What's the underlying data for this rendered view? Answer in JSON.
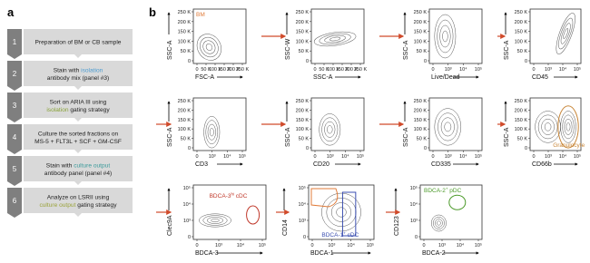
{
  "panel_a": {
    "label": "a",
    "steps": [
      {
        "number": "1",
        "lines": [
          [
            {
              "text": "Preparation of BM or CB sample"
            }
          ]
        ]
      },
      {
        "number": "2",
        "lines": [
          [
            {
              "text": "Stain with "
            },
            {
              "text": "isolation",
              "color": "#4a9bd1"
            }
          ],
          [
            {
              "text": "antibody mix (panel #3)"
            }
          ]
        ]
      },
      {
        "number": "3",
        "lines": [
          [
            {
              "text": "Sort on ARIA III using"
            }
          ],
          [
            {
              "text": "isolation",
              "color": "#8aa33a"
            },
            {
              "text": " gating strategy"
            }
          ]
        ]
      },
      {
        "number": "4",
        "lines": [
          [
            {
              "text": "Culture the sorted fractions on"
            }
          ],
          [
            {
              "text": "MS-5 + FLT3L + SCF + GM-CSF"
            }
          ]
        ]
      },
      {
        "number": "5",
        "lines": [
          [
            {
              "text": "Stain with "
            },
            {
              "text": "culture output",
              "color": "#3a9a9a"
            }
          ],
          [
            {
              "text": "antibody panel (panel #4)"
            }
          ]
        ]
      },
      {
        "number": "6",
        "lines": [
          [
            {
              "text": "Analyze on LSRII using"
            }
          ],
          [
            {
              "text": "culture output",
              "color": "#9aa33a"
            },
            {
              "text": " gating strategy"
            }
          ]
        ]
      }
    ]
  },
  "panel_b": {
    "label": "b",
    "plots": [
      {
        "y_label": "SSC-A",
        "x_label": "FSC-A",
        "y_ticks": [
          "250 K",
          "200 K",
          "150 K",
          "100 K",
          "50 K",
          "0"
        ],
        "x_ticks": [
          "0",
          "50 K",
          "100 K",
          "150 K",
          "200 K",
          "250 K"
        ],
        "gate": {
          "text": "BM",
          "color": "#e07b39"
        }
      },
      {
        "y_label": "SSC-W",
        "x_label": "SSC-A",
        "y_ticks": [
          "250 K",
          "200 K",
          "150 K",
          "100 K",
          "50 K",
          "0"
        ],
        "x_ticks": [
          "0",
          "50 K",
          "100 K",
          "150 K",
          "200 K",
          "250 K"
        ]
      },
      {
        "y_label": "SSC-A",
        "x_label": "Live/Dead",
        "y_ticks": [
          "250 K",
          "200 K",
          "150 K",
          "100 K",
          "50 K",
          "0"
        ],
        "x_ticks": [
          "0",
          "10³",
          "10⁴",
          "10⁵"
        ]
      },
      {
        "y_label": "SSC-A",
        "x_label": "CD45",
        "y_ticks": [
          "250 K",
          "200 K",
          "150 K",
          "100 K",
          "50 K",
          "0"
        ],
        "x_ticks": [
          "0",
          "10³",
          "10⁴",
          "10⁵"
        ]
      },
      {
        "y_label": "SSC-A",
        "x_label": "CD3",
        "y_ticks": [
          "250 K",
          "200 K",
          "150 K",
          "100 K",
          "50 K",
          "0"
        ],
        "x_ticks": [
          "0",
          "10³",
          "10⁴",
          "10⁵"
        ]
      },
      {
        "y_label": "SSC-A",
        "x_label": "CD20",
        "y_ticks": [
          "250 K",
          "200 K",
          "150 K",
          "100 K",
          "50 K",
          "0"
        ],
        "x_ticks": [
          "0",
          "10³",
          "10⁴",
          "10⁵"
        ]
      },
      {
        "y_label": "SSC-A",
        "x_label": "CD335",
        "y_ticks": [
          "250 K",
          "200 K",
          "150 K",
          "100 K",
          "50 K",
          "0"
        ],
        "x_ticks": [
          "0",
          "10³",
          "10⁴",
          "10⁵"
        ]
      },
      {
        "y_label": "SSC-A",
        "x_label": "CD66b",
        "y_ticks": [
          "250 K",
          "200 K",
          "150 K",
          "100 K",
          "50 K",
          "0"
        ],
        "x_ticks": [
          "0",
          "10³",
          "10⁴",
          "10⁵"
        ],
        "gate": {
          "text": "Granulocyte",
          "color": "#c8873a"
        }
      },
      {
        "y_label": "Clec9A",
        "x_label": "BDCA-3",
        "y_ticks": [
          "10⁵",
          "10⁴",
          "10³",
          "0"
        ],
        "x_ticks": [
          "0",
          "10³",
          "10⁴",
          "10⁵"
        ],
        "gate": {
          "text": "BDCA-3",
          "sup": "hi",
          "suffix": " cDC",
          "color": "#c0392b"
        }
      },
      {
        "y_label": "CD14",
        "x_label": "BDCA-1",
        "y_ticks": [
          "10⁵",
          "10⁴",
          "10³",
          "0"
        ],
        "x_ticks": [
          "0",
          "10³",
          "10⁴",
          "10⁵"
        ],
        "gate": {
          "text": "BDCA-1",
          "sup": "+",
          "suffix": " cDC",
          "color": "#3b4fb0"
        }
      },
      {
        "y_label": "CD123",
        "x_label": "BDCA-2",
        "y_ticks": [
          "10⁵",
          "10⁴",
          "10³",
          "0"
        ],
        "x_ticks": [
          "0",
          "10³",
          "10⁴",
          "10⁵"
        ],
        "gate": {
          "text": "BDCA-2",
          "sup": "+",
          "suffix": " pDC",
          "color": "#4c9a2a"
        }
      }
    ]
  }
}
